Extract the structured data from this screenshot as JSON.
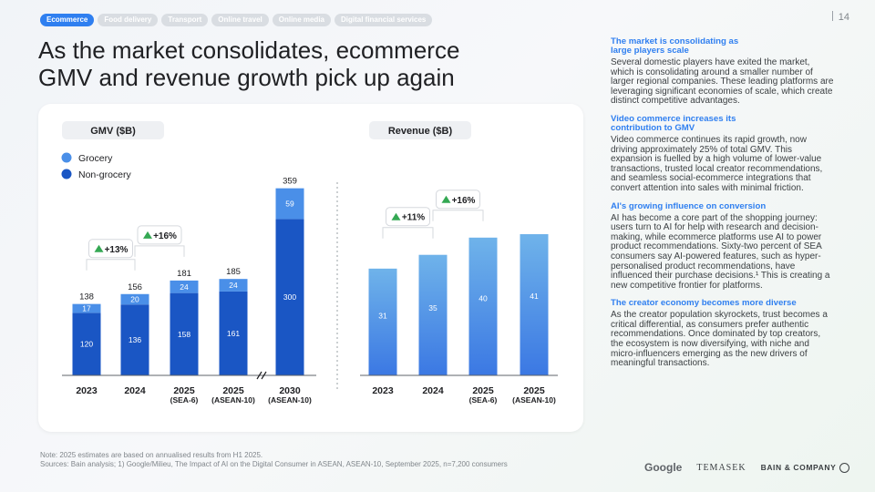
{
  "tabs": [
    "Ecommerce",
    "Food delivery",
    "Transport",
    "Online travel",
    "Online media",
    "Digital financial services"
  ],
  "page_number": "14",
  "title": "As the market consolidates, ecommerce GMV and revenue growth pick up again",
  "colors": {
    "grocery": "#4a8fe8",
    "non_grocery": "#1a56c4",
    "revenue_top": "#6fb3ea",
    "revenue_bottom": "#3b78e3",
    "accent": "#2f7ff0",
    "growth_arrow": "#34a853"
  },
  "chart_data": [
    {
      "type": "bar",
      "title": "GMV ($B)",
      "stacked": true,
      "categories": [
        [
          "2023"
        ],
        [
          "2024"
        ],
        [
          "2025",
          "(SEA-6)"
        ],
        [
          "2025",
          "(ASEAN-10)"
        ],
        [
          "2030",
          "(ASEAN-10)"
        ]
      ],
      "series": [
        {
          "name": "Non-grocery",
          "values": [
            120,
            136,
            158,
            161,
            300
          ]
        },
        {
          "name": "Grocery",
          "values": [
            17,
            20,
            24,
            24,
            59
          ]
        }
      ],
      "totals": [
        "138",
        "156",
        "181",
        "185",
        "359"
      ],
      "growth_labels": [
        {
          "label": "+13%",
          "between": [
            0,
            1
          ]
        },
        {
          "label": "+16%",
          "between": [
            1,
            2
          ]
        }
      ],
      "axis_break_between": [
        3,
        4
      ],
      "legend": "top-left"
    },
    {
      "type": "bar",
      "title": "Revenue ($B)",
      "categories": [
        [
          "2023"
        ],
        [
          "2024"
        ],
        [
          "2025",
          "(SEA-6)"
        ],
        [
          "2025",
          "(ASEAN-10)"
        ]
      ],
      "values": [
        31,
        35,
        40,
        41
      ],
      "growth_labels": [
        {
          "label": "+11%",
          "between": [
            0,
            1
          ]
        },
        {
          "label": "+16%",
          "between": [
            1,
            2
          ]
        }
      ]
    }
  ],
  "sections": [
    {
      "heading": "The market is consolidating as large players scale",
      "body": "Several domestic players have exited the market, which is consolidating around a smaller number of larger regional companies. These leading platforms are leveraging significant economies of scale, which create distinct competitive advantages."
    },
    {
      "heading": "Video commerce increases its contribution to GMV",
      "body": "Video commerce continues its rapid growth, now driving approximately 25% of total GMV. This expansion is fuelled by a high volume of lower-value transactions, trusted local creator recommendations, and seamless social-ecommerce integrations that convert attention into sales with minimal friction."
    },
    {
      "heading": "AI's growing influence on conversion",
      "body": "AI has become a core part of the shopping journey: users turn to AI for help with research and decision-making, while ecommerce platforms use AI to power product recommendations. Sixty-two percent of SEA consumers say AI-powered features, such as hyper-personalised product recommendations, have influenced their purchase decisions.¹ This is creating a new competitive frontier for platforms."
    },
    {
      "heading": "The creator economy becomes more diverse",
      "body": "As the creator population skyrockets, trust becomes a critical differential, as consumers prefer authentic recommendations. Once dominated by top creators, the ecosystem is now diversifying, with niche and micro-influencers emerging as the new drivers of meaningful transactions."
    }
  ],
  "notes": [
    "Note: 2025 estimates are based on annualised results from H1 2025.",
    "Sources: Bain analysis; 1) Google/Milieu, The Impact of AI on the Digital Consumer in ASEAN, ASEAN-10, September 2025, n=7,200 consumers"
  ],
  "logos": {
    "google": "Google",
    "temasek": "TEMASEK",
    "bain": "BAIN & COMPANY"
  }
}
